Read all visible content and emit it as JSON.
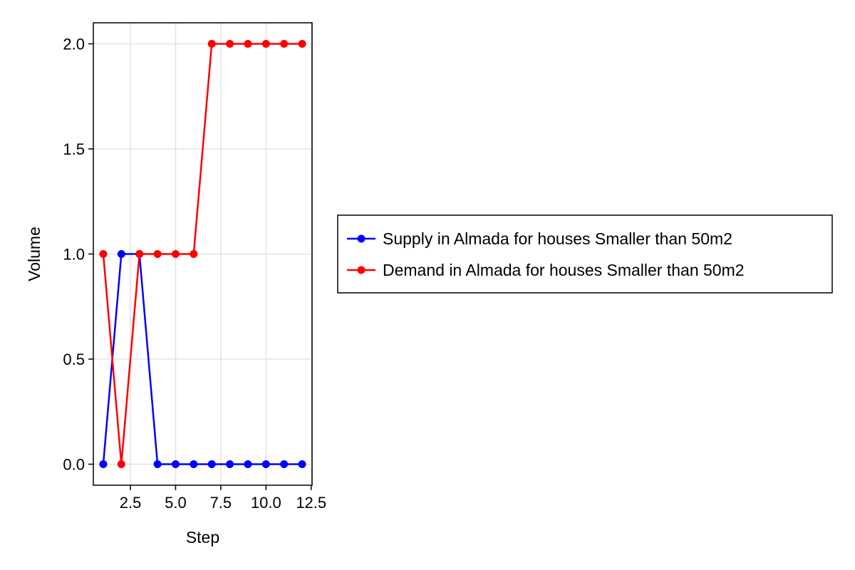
{
  "chart_data": {
    "type": "line",
    "title": "",
    "xlabel": "Step",
    "ylabel": "Volume",
    "xlim": [
      0.45,
      12.55
    ],
    "ylim": [
      -0.1,
      2.1
    ],
    "xticks": [
      2.5,
      5.0,
      7.5,
      10.0,
      12.5
    ],
    "xtick_labels": [
      "2.5",
      "5.0",
      "7.5",
      "10.0",
      "12.5"
    ],
    "yticks": [
      0.0,
      0.5,
      1.0,
      1.5,
      2.0
    ],
    "ytick_labels": [
      "0.0",
      "0.5",
      "1.0",
      "1.5",
      "2.0"
    ],
    "grid": true,
    "legend_position": "right",
    "x": [
      1,
      2,
      3,
      4,
      5,
      6,
      7,
      8,
      9,
      10,
      11,
      12
    ],
    "series": [
      {
        "name": "Supply in Almada for houses Smaller than 50m2",
        "color": "#0000ff",
        "values": [
          0,
          1,
          1,
          0,
          0,
          0,
          0,
          0,
          0,
          0,
          0,
          0
        ]
      },
      {
        "name": "Demand in Almada for houses Smaller than 50m2",
        "color": "#ff0000",
        "values": [
          1,
          0,
          1,
          1,
          1,
          1,
          2,
          2,
          2,
          2,
          2,
          2
        ]
      }
    ]
  }
}
